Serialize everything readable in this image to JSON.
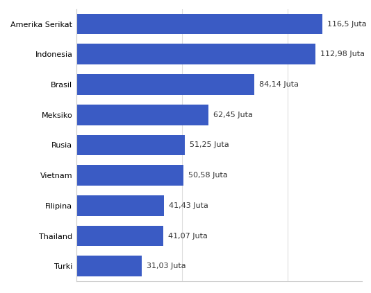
{
  "chart_data": {
    "type": "bar",
    "orientation": "horizontal",
    "categories": [
      "Amerika Serikat",
      "Indonesia",
      "Brasil",
      "Meksiko",
      "Rusia",
      "Vietnam",
      "Filipina",
      "Thailand",
      "Turki"
    ],
    "values": [
      116.5,
      112.98,
      84.14,
      62.45,
      51.25,
      50.58,
      41.43,
      41.07,
      31.03
    ],
    "value_labels": [
      "116,5 Juta",
      "112,98 Juta",
      "84,14 Juta",
      "62,45 Juta",
      "51,25 Juta",
      "50,58 Juta",
      "41,43 Juta",
      "41,07 Juta",
      "31,03 Juta"
    ],
    "color": "#3a5bc4",
    "xlim": [
      0,
      135
    ],
    "xticks": [
      0,
      50,
      100
    ],
    "grid": true,
    "data_labels": true,
    "tick_labels": "y"
  }
}
